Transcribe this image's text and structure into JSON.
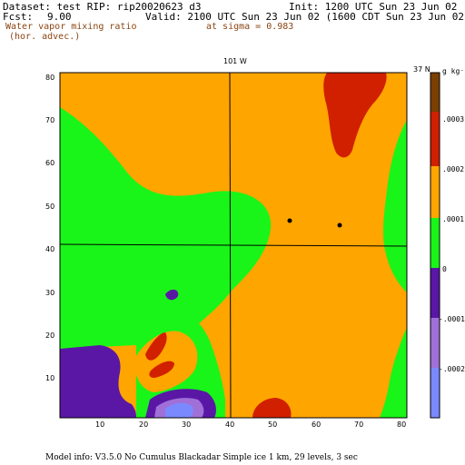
{
  "header": {
    "dataset": "Dataset: test   RIP: rip20020623 d3",
    "init": "Init: 1200 UTC Sun 23 Jun 02",
    "fcst_label": "Fcst:",
    "fcst_value": "9.00",
    "valid": "Valid: 2100 UTC Sun 23 Jun 02 (1600 CDT Sun 23 Jun 02)",
    "field_line1": "Water vapor mixing ratio",
    "field_line2": "(hor. advec.)",
    "level": "at sigma = 0.983"
  },
  "map": {
    "top_label": "101 W",
    "right_label": "37 N",
    "x_ticks": [
      "10",
      "20",
      "30",
      "40",
      "50",
      "60",
      "70",
      "80"
    ],
    "y_ticks": [
      "10",
      "20",
      "30",
      "40",
      "50",
      "60",
      "70",
      "80"
    ]
  },
  "colorbar": {
    "units": "g kg⁻¹",
    "labels": [
      ".0003",
      ".0002",
      ".0001",
      "0",
      "-.0001",
      "-.0002"
    ],
    "colors": [
      "#7b3f00",
      "#d12000",
      "#ffa500",
      "#19f519",
      "#5a17a6",
      "#a070d8",
      "#7b89ff"
    ]
  },
  "footer": {
    "model_info": "Model info: V3.5.0 No Cumulus Blackadar  Simple ice     1 km,  29 levels,    3 sec"
  }
}
